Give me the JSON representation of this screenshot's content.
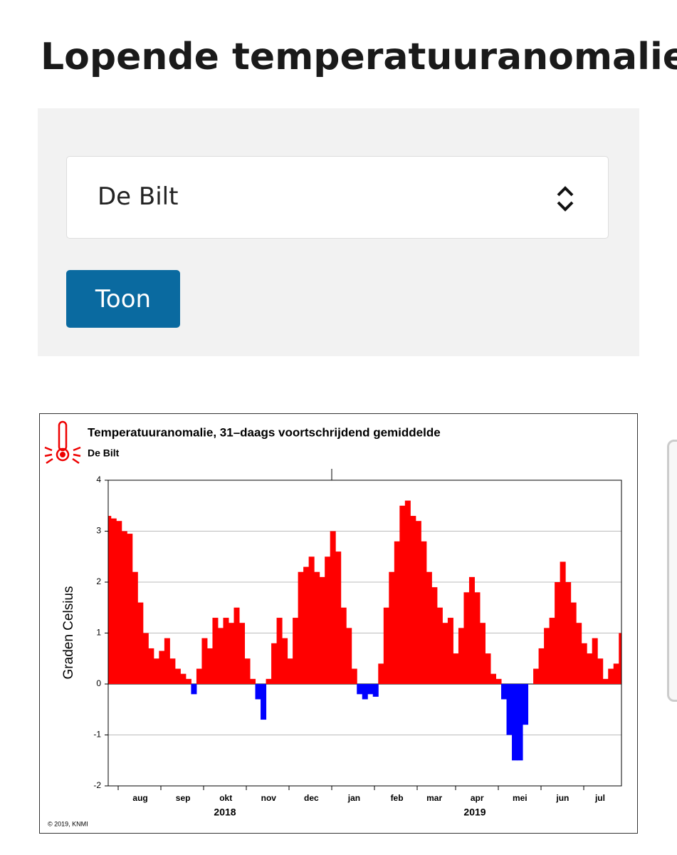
{
  "page_title": "Lopende temperatuuranomalie",
  "form": {
    "select": "De Bilt",
    "button": "Toon"
  },
  "chart_data": {
    "type": "bar",
    "title": "Temperatuuranomalie, 31–daags voortschrijdend gemiddelde",
    "subtitle": "De Bilt",
    "ylabel": "Graden Celsius",
    "credit": "© 2019, KNMI",
    "year_labels": [
      "2018",
      "2019"
    ],
    "categories": [
      null,
      null,
      null,
      null,
      null,
      null,
      "aug",
      null,
      null,
      null,
      null,
      null,
      null,
      null,
      "sep",
      null,
      null,
      null,
      null,
      null,
      null,
      null,
      "okt",
      null,
      null,
      null,
      null,
      null,
      null,
      null,
      "nov",
      null,
      null,
      null,
      null,
      null,
      null,
      null,
      "dec",
      null,
      null,
      null,
      null,
      null,
      null,
      null,
      "jan",
      null,
      null,
      null,
      null,
      null,
      null,
      null,
      "feb",
      null,
      null,
      null,
      null,
      null,
      null,
      "mar",
      null,
      null,
      null,
      null,
      null,
      null,
      null,
      "apr",
      null,
      null,
      null,
      null,
      null,
      null,
      null,
      "mei",
      null,
      null,
      null,
      null,
      null,
      null,
      null,
      "jun",
      null,
      null,
      null,
      null,
      null,
      null,
      "jul",
      null,
      null,
      null,
      null
    ],
    "values": [
      3.3,
      3.25,
      3.2,
      3.0,
      2.95,
      2.2,
      1.6,
      1.0,
      0.7,
      0.5,
      0.65,
      0.9,
      0.5,
      0.3,
      0.2,
      0.1,
      -0.2,
      0.3,
      0.9,
      0.7,
      1.3,
      1.1,
      1.3,
      1.2,
      1.5,
      1.2,
      0.5,
      0.1,
      -0.3,
      -0.7,
      0.1,
      0.8,
      1.3,
      0.9,
      0.5,
      1.3,
      2.2,
      2.3,
      2.5,
      2.2,
      2.1,
      2.5,
      3.0,
      2.6,
      1.5,
      1.1,
      0.3,
      -0.2,
      -0.3,
      -0.2,
      -0.25,
      0.4,
      1.5,
      2.2,
      2.8,
      3.5,
      3.6,
      3.3,
      3.2,
      2.8,
      2.2,
      1.9,
      1.5,
      1.2,
      1.3,
      0.6,
      1.1,
      1.8,
      2.1,
      1.8,
      1.2,
      0.6,
      0.2,
      0.1,
      -0.3,
      -1.0,
      -1.5,
      -1.5,
      -0.8,
      0.0,
      0.3,
      0.7,
      1.1,
      1.3,
      2.0,
      2.4,
      2.0,
      1.6,
      1.2,
      0.8,
      0.6,
      0.9,
      0.5,
      0.1,
      0.3,
      0.4,
      1.0
    ],
    "positive_color": "#ff0000",
    "negative_color": "#0000ff",
    "ylim": [
      -2,
      4
    ],
    "yticks": [
      -2,
      -1,
      0,
      1,
      2,
      3,
      4
    ],
    "grid": true
  }
}
